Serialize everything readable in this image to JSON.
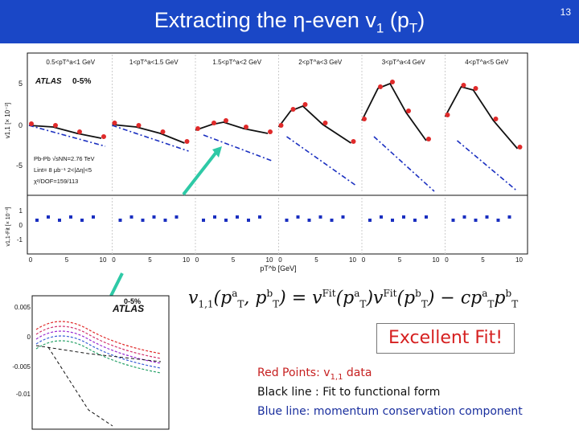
{
  "slide": {
    "title_main": "Extracting the η-even v",
    "title_sub": "1",
    "title_rest": " (p",
    "title_T": "T",
    "title_end": ")",
    "page_number": "13"
  },
  "figure": {
    "bin_labels": [
      "0.5<pT^a<1 GeV",
      "1<pT^a<1.5 GeV",
      "1.5<pT^a<2 GeV",
      "2<pT^a<3 GeV",
      "3<pT^a<4 GeV",
      "4<pT^a<5 GeV"
    ],
    "experiment": "ATLAS",
    "centrality": "0-5%",
    "info_lines": [
      "Pb-Pb √sNN=2.76 TeV",
      "Lint= 8 μb⁻¹  2<|Δη|<5",
      "χ²/DOF=159/113"
    ],
    "upper_ylabel": "v1,1 [× 10⁻³]",
    "upper_yticks": [
      "5",
      "0",
      "-5"
    ],
    "lower_ylabel": "v1,1-Fit [× 10⁻³]",
    "lower_yticks": [
      "1",
      "0",
      "-1"
    ],
    "xticks": [
      "0",
      "5",
      "10"
    ],
    "xlabel": "pT^b [GeV]"
  },
  "inset": {
    "experiment": "ATLAS",
    "centrality": "0-5%",
    "yticks": [
      "0.005",
      "0",
      "-0.005",
      "-0.01"
    ]
  },
  "formula": {
    "lhs": "v",
    "lhs_sub": "1,1",
    "mid": "= v",
    "fit_sup": "Fit",
    "minus": "− cp",
    "a": "a",
    "b": "b",
    "T": "T"
  },
  "fit_message": "Excellent Fit!",
  "legend": {
    "red_prefix": "Red Points: v",
    "red_sub": "1,1",
    "red_suffix": " data",
    "black": "Black line : Fit to functional form",
    "blue": "Blue line: momentum conservation component"
  },
  "colors": {
    "header": "#1a47c6",
    "data_red": "#e02a2a",
    "fit_black": "#111111",
    "momentum_blue": "#1a2fc0",
    "arrow": "#2ec9a6"
  }
}
